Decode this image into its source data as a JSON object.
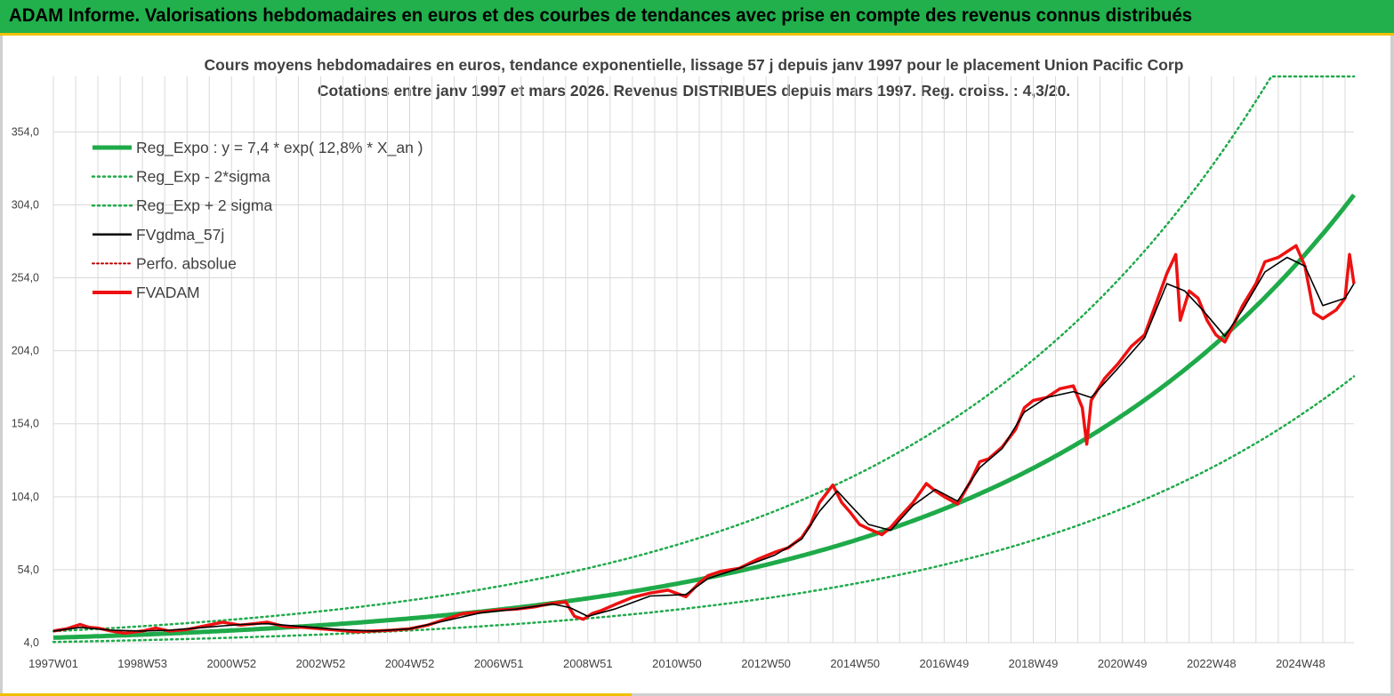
{
  "header": {
    "title": "ADAM Informe. Valorisations hebdomadaires en euros et des courbes de tendances avec prise en compte des revenus connus distribués"
  },
  "colors": {
    "banner": "#21b04c",
    "reg_expo": "#1faa4a",
    "sigma": "#1faa4a",
    "fvgdma": "#000000",
    "perfo": "#c00000",
    "fvadam": "#ee1111",
    "grid": "#d9d9d9"
  },
  "chart_data": {
    "type": "line",
    "title": "Cours moyens hebdomadaires en euros, tendance exponentielle, lissage 57 j depuis janv 1997 pour le placement Union Pacific Corp",
    "subtitle": "Cotations entre janv 1997 et mars 2026. Revenus DISTRIBUES depuis mars 1997. Reg. croiss. : 4,3/20.",
    "xlabel": "",
    "ylabel": "",
    "ylim": [
      4,
      392
    ],
    "xlim": [
      1997.0,
      2026.2
    ],
    "y_ticks": [
      "4,0",
      "54,0",
      "104,0",
      "154,0",
      "204,0",
      "254,0",
      "304,0",
      "354,0"
    ],
    "y_tick_values": [
      4,
      54,
      104,
      154,
      204,
      254,
      304,
      354
    ],
    "x_ticks": [
      "1997W01",
      "1998W53",
      "2000W52",
      "2002W52",
      "2004W52",
      "2006W51",
      "2008W51",
      "2010W50",
      "2012W50",
      "2014W50",
      "2016W49",
      "2018W49",
      "2020W49",
      "2022W48",
      "2024W48"
    ],
    "x_tick_values": [
      1997.0,
      1999.0,
      2001.0,
      2003.0,
      2005.0,
      2007.0,
      2009.0,
      2011.0,
      2013.0,
      2015.0,
      2017.0,
      2019.0,
      2021.0,
      2023.0,
      2025.0
    ],
    "legend": {
      "position": "top-left",
      "entries": [
        "Reg_Expo : y = 7,4 * exp( 12,8% *  X_an )",
        "Reg_Exp - 2*sigma",
        "Reg_Exp + 2 sigma",
        "FVgdma_57j",
        "Perfo. absolue",
        "FVADAM"
      ]
    },
    "regression": {
      "a": 7.4,
      "rate": 0.128,
      "x0": 1997.0
    },
    "sigma_lower_factor": 0.6,
    "sigma_upper_factor": 1.6,
    "series": [
      {
        "name": "FVADAM",
        "x": [
          1997.0,
          1997.3,
          1997.6,
          1997.8,
          1998.0,
          1998.3,
          1998.6,
          1999.0,
          1999.3,
          1999.6,
          2000.0,
          2000.4,
          2000.8,
          2001.2,
          2001.5,
          2001.8,
          2002.2,
          2002.6,
          2003.0,
          2003.4,
          2003.8,
          2004.2,
          2004.6,
          2005.0,
          2005.4,
          2005.8,
          2006.2,
          2006.6,
          2007.0,
          2007.4,
          2007.8,
          2008.2,
          2008.5,
          2008.7,
          2008.9,
          2009.1,
          2009.3,
          2009.6,
          2010.0,
          2010.4,
          2010.8,
          2011.2,
          2011.5,
          2011.7,
          2012.0,
          2012.4,
          2012.8,
          2013.2,
          2013.5,
          2013.8,
          2014.0,
          2014.2,
          2014.5,
          2014.7,
          2014.9,
          2015.1,
          2015.3,
          2015.6,
          2015.8,
          2016.0,
          2016.3,
          2016.6,
          2016.8,
          2017.0,
          2017.3,
          2017.6,
          2017.8,
          2018.0,
          2018.3,
          2018.6,
          2018.8,
          2019.0,
          2019.3,
          2019.6,
          2019.9,
          2020.1,
          2020.2,
          2020.3,
          2020.6,
          2020.9,
          2021.2,
          2021.5,
          2021.8,
          2022.0,
          2022.2,
          2022.3,
          2022.5,
          2022.7,
          2022.9,
          2023.1,
          2023.3,
          2023.5,
          2023.7,
          2024.0,
          2024.2,
          2024.5,
          2024.7,
          2024.9,
          2025.1,
          2025.3,
          2025.5,
          2025.8,
          2026.0,
          2026.1,
          2026.2
        ],
        "values": [
          12.0,
          13.5,
          16.5,
          14.5,
          14.0,
          12.0,
          10.5,
          12.0,
          14.0,
          12.0,
          13.0,
          15.5,
          18.0,
          16.0,
          17.0,
          18.0,
          15.0,
          14.5,
          13.5,
          12.5,
          11.5,
          12.0,
          12.5,
          13.5,
          16.0,
          20.0,
          24.0,
          25.0,
          26.5,
          27.0,
          28.5,
          31.0,
          32.0,
          22.0,
          20.0,
          24.0,
          26.0,
          30.0,
          35.0,
          38.0,
          40.0,
          35.5,
          45.0,
          50.0,
          53.0,
          55.0,
          61.0,
          66.0,
          69.0,
          76.0,
          85.0,
          100.0,
          112.0,
          100.0,
          93.0,
          85.0,
          82.0,
          78.0,
          83.0,
          90.0,
          100.0,
          113.0,
          108.0,
          104.0,
          99.0,
          115.0,
          128.0,
          130.0,
          138.0,
          150.0,
          165.0,
          170.0,
          172.0,
          178.0,
          180.0,
          165.0,
          140.0,
          170.0,
          185.0,
          195.0,
          207.0,
          215.0,
          240.0,
          257.0,
          270.0,
          225.0,
          245.0,
          240.0,
          225.0,
          215.0,
          210.0,
          222.0,
          235.0,
          250.0,
          265.0,
          268.0,
          272.0,
          276.0,
          262.0,
          230.0,
          226.0,
          232.0,
          240.0,
          270.0,
          250.0
        ]
      },
      {
        "name": "FVgdma_57j",
        "x": [
          1997.0,
          1997.6,
          1998.3,
          1999.0,
          1999.6,
          2000.4,
          2001.2,
          2001.8,
          2002.6,
          2003.4,
          2004.2,
          2005.0,
          2005.8,
          2006.6,
          2007.4,
          2008.2,
          2008.6,
          2009.0,
          2009.6,
          2010.4,
          2011.2,
          2011.7,
          2012.4,
          2013.2,
          2013.8,
          2014.2,
          2014.6,
          2014.9,
          2015.3,
          2015.8,
          2016.3,
          2016.8,
          2017.3,
          2017.8,
          2018.3,
          2018.8,
          2019.3,
          2019.9,
          2020.3,
          2020.9,
          2021.5,
          2022.0,
          2022.4,
          2022.8,
          2023.3,
          2023.7,
          2024.2,
          2024.7,
          2025.1,
          2025.5,
          2026.0,
          2026.2
        ],
        "values": [
          12.0,
          14.5,
          12.5,
          12.0,
          12.5,
          14.5,
          16.5,
          17.0,
          15.0,
          13.0,
          12.0,
          13.5,
          19.0,
          24.5,
          27.0,
          30.5,
          28.0,
          22.0,
          27.0,
          36.0,
          37.0,
          48.0,
          55.0,
          64.0,
          75.0,
          94.0,
          108.0,
          98.0,
          85.0,
          81.0,
          98.0,
          109.0,
          101.0,
          124.0,
          137.0,
          162.0,
          172.0,
          176.0,
          172.0,
          192.0,
          213.0,
          250.0,
          245.0,
          232.0,
          214.0,
          232.0,
          258.0,
          268.0,
          262.0,
          235.0,
          240.0,
          250.0
        ]
      }
    ]
  }
}
